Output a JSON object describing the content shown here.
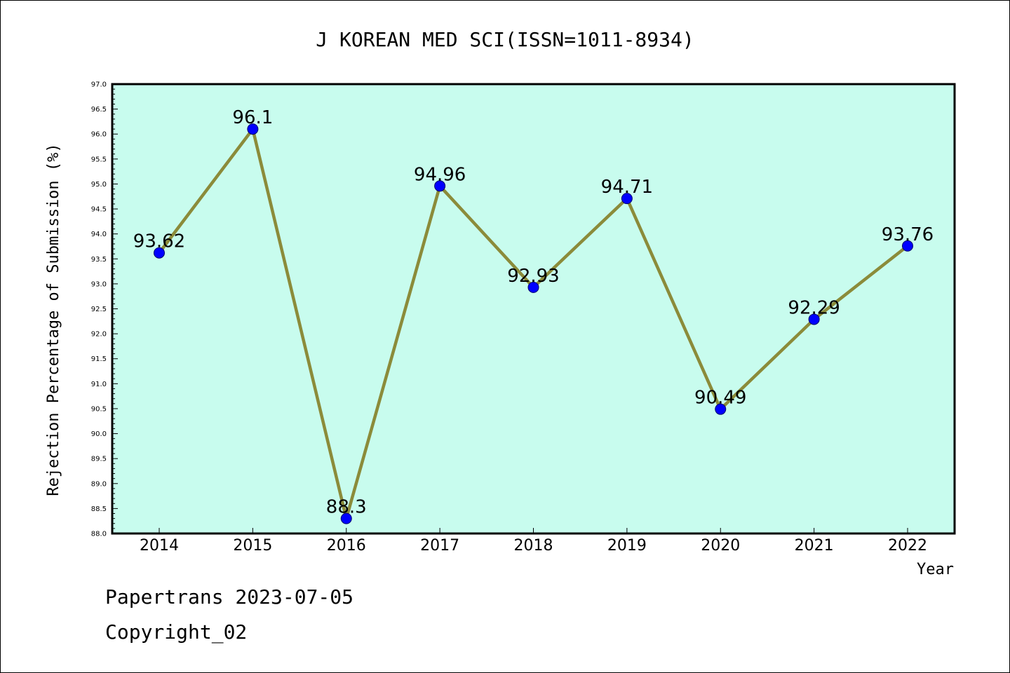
{
  "chart_data": {
    "type": "line",
    "title": "J KOREAN MED SCI(ISSN=1011-8934)",
    "xlabel": "Year",
    "ylabel": "Rejection Percentage of Submission (%)",
    "categories": [
      "2014",
      "2015",
      "2016",
      "2017",
      "2018",
      "2019",
      "2020",
      "2021",
      "2022"
    ],
    "values": [
      93.62,
      96.1,
      88.3,
      94.96,
      92.93,
      94.71,
      90.49,
      92.29,
      93.76
    ],
    "data_labels": [
      "93.62",
      "96.1",
      "88.3",
      "94.96",
      "92.93",
      "94.71",
      "90.49",
      "92.29",
      "93.76"
    ],
    "ylim": [
      88.0,
      97.0
    ],
    "yticks": [
      "88.0",
      "88.5",
      "89.0",
      "89.5",
      "90.0",
      "90.5",
      "91.0",
      "91.5",
      "92.0",
      "92.5",
      "93.0",
      "93.5",
      "94.0",
      "94.5",
      "95.0",
      "95.5",
      "96.0",
      "96.5",
      "97.0"
    ],
    "grid": false,
    "colors": {
      "plot_background": "#c8fcee",
      "line": "#8b8b3a",
      "marker": "#0000ff"
    }
  },
  "footer": {
    "line1": "Papertrans 2023-07-05",
    "line2": "Copyright_02"
  }
}
